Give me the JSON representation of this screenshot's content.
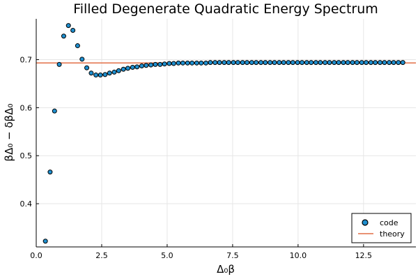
{
  "chart_data": {
    "type": "scatter",
    "title": "Filled Degenerate Quadratic Energy Spectrum",
    "xlabel": "Δ₀β",
    "ylabel": "βΔ₀ − δβΔ₀",
    "xlim": [
      0,
      14.5
    ],
    "ylim": [
      0.31,
      0.785
    ],
    "xticks": [
      0,
      2.5,
      5,
      7.5,
      10,
      12.5
    ],
    "xtick_labels": [
      "0.0",
      "2.5",
      "5.0",
      "7.5",
      "10.0",
      "12.5"
    ],
    "yticks": [
      0.4,
      0.5,
      0.6,
      0.7
    ],
    "ytick_labels": [
      "0.4",
      "0.5",
      "0.6",
      "0.7"
    ],
    "grid": true,
    "legend_position": "bottom-right",
    "series": [
      {
        "name": "code",
        "kind": "scatter",
        "color": "#1f8fcf",
        "x": [
          0.35,
          0.53,
          0.7,
          0.88,
          1.05,
          1.23,
          1.4,
          1.58,
          1.75,
          1.93,
          2.1,
          2.28,
          2.45,
          2.63,
          2.8,
          2.98,
          3.15,
          3.33,
          3.5,
          3.68,
          3.85,
          4.03,
          4.2,
          4.38,
          4.55,
          4.73,
          4.9,
          5.08,
          5.25,
          5.43,
          5.6,
          5.78,
          5.95,
          6.13,
          6.3,
          6.48,
          6.65,
          6.83,
          7.0,
          7.18,
          7.35,
          7.53,
          7.7,
          7.88,
          8.05,
          8.23,
          8.4,
          8.58,
          8.75,
          8.93,
          9.1,
          9.28,
          9.45,
          9.63,
          9.8,
          9.98,
          10.15,
          10.33,
          10.5,
          10.68,
          10.85,
          11.03,
          11.2,
          11.38,
          11.55,
          11.73,
          11.9,
          12.08,
          12.25,
          12.43,
          12.6,
          12.78,
          12.95,
          13.13,
          13.3,
          13.48,
          13.65,
          13.83,
          14.0
        ],
        "y": [
          0.322,
          0.466,
          0.593,
          0.69,
          0.749,
          0.771,
          0.761,
          0.729,
          0.701,
          0.683,
          0.672,
          0.668,
          0.668,
          0.669,
          0.672,
          0.674,
          0.677,
          0.68,
          0.682,
          0.684,
          0.685,
          0.687,
          0.688,
          0.689,
          0.69,
          0.69,
          0.691,
          0.692,
          0.692,
          0.693,
          0.693,
          0.693,
          0.693,
          0.693,
          0.693,
          0.693,
          0.694,
          0.694,
          0.694,
          0.694,
          0.694,
          0.694,
          0.694,
          0.694,
          0.694,
          0.694,
          0.694,
          0.694,
          0.694,
          0.694,
          0.694,
          0.694,
          0.694,
          0.694,
          0.694,
          0.694,
          0.694,
          0.694,
          0.694,
          0.694,
          0.694,
          0.694,
          0.694,
          0.694,
          0.694,
          0.694,
          0.694,
          0.694,
          0.694,
          0.694,
          0.694,
          0.694,
          0.694,
          0.694,
          0.694,
          0.694,
          0.694,
          0.694,
          0.694
        ]
      },
      {
        "name": "theory",
        "kind": "hline",
        "color": "#e26f46",
        "y": 0.6931
      }
    ]
  }
}
